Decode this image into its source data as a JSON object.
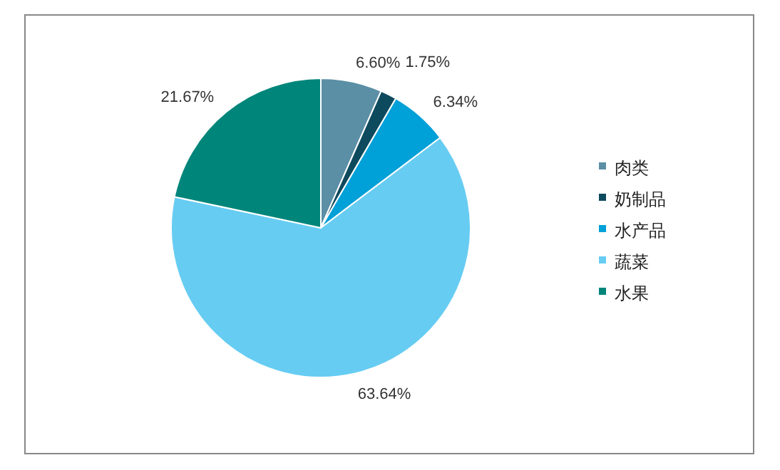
{
  "chart_data": {
    "type": "pie",
    "categories": [
      "肉类",
      "奶制品",
      "水产品",
      "蔬菜",
      "水果"
    ],
    "values": [
      6.6,
      1.75,
      6.34,
      63.64,
      21.67
    ],
    "colors": [
      "#5b8fa6",
      "#0e4a5e",
      "#00a0d8",
      "#67ccf2",
      "#00857a"
    ],
    "value_labels": [
      "6.60%",
      "1.75%",
      "6.34%",
      "63.64%",
      "21.67%"
    ],
    "legend": "right"
  }
}
